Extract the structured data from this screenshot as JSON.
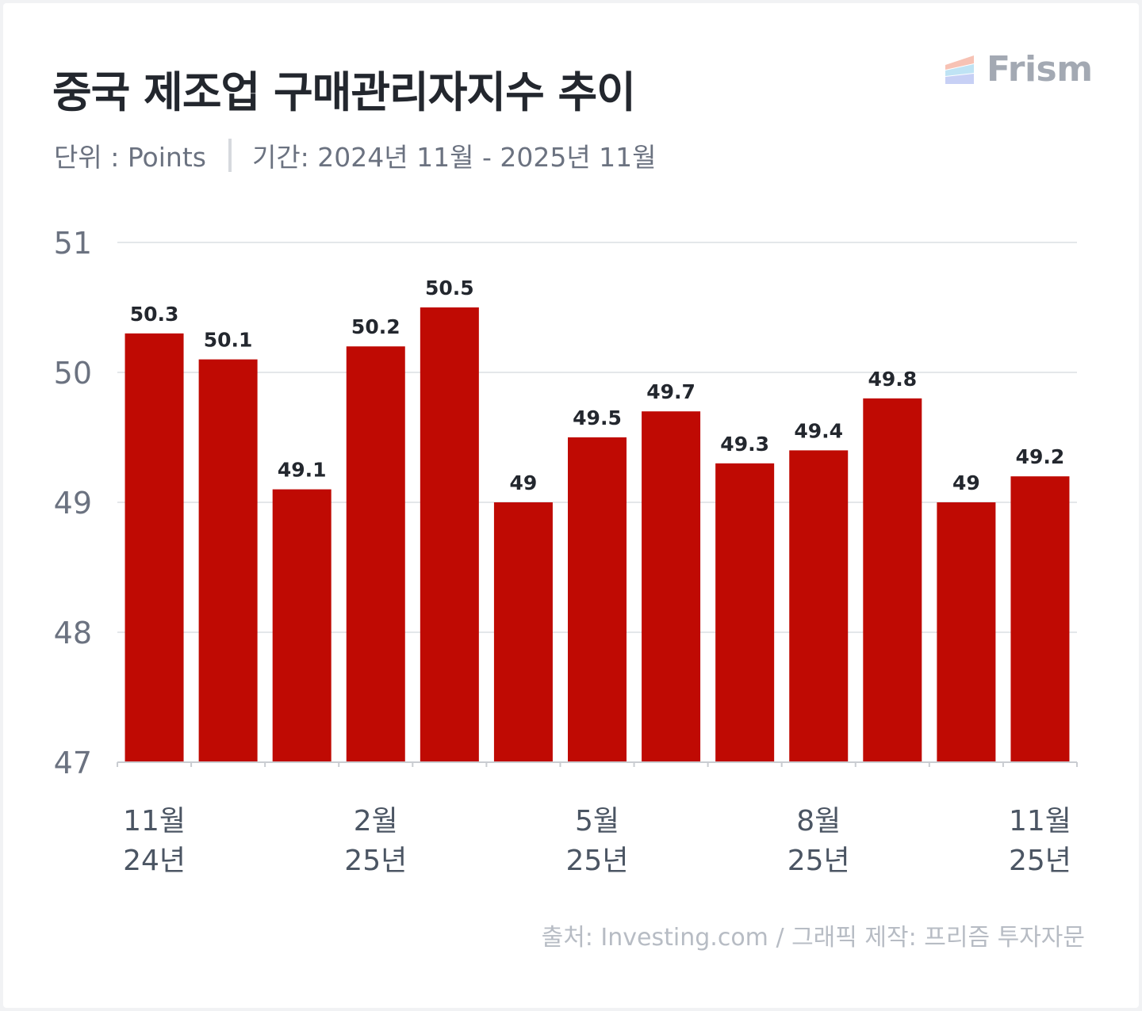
{
  "title": "중국 제조업 구매관리자지수 추이",
  "subtitle": {
    "unit": "단위 : Points",
    "period": "기간: 2024년 11월 - 2025년 11월"
  },
  "logo": {
    "text": "Frism",
    "icon": "frism-logo-icon"
  },
  "source": "출처: Investing.com / 그래픽 제작: 프리즘 투자자문",
  "colors": {
    "bar": "#bf0a03",
    "grid": "#dcdfe3",
    "axis_text": "#6b7280",
    "label_text": "#23272e"
  },
  "chart_data": {
    "type": "bar",
    "categories": [
      "2024-11",
      "2024-12",
      "2025-01",
      "2025-02",
      "2025-03",
      "2025-04",
      "2025-05",
      "2025-06",
      "2025-07",
      "2025-08",
      "2025-09",
      "2025-10",
      "2025-11"
    ],
    "values": [
      50.3,
      50.1,
      49.1,
      50.2,
      50.5,
      49.0,
      49.5,
      49.7,
      49.3,
      49.4,
      49.8,
      49.0,
      49.2
    ],
    "value_labels": [
      "50.3",
      "50.1",
      "49.1",
      "50.2",
      "50.5",
      "49",
      "49.5",
      "49.7",
      "49.3",
      "49.4",
      "49.8",
      "49",
      "49.2"
    ],
    "ylim": [
      47,
      51
    ],
    "yticks": [
      47,
      48,
      49,
      50,
      51
    ],
    "xtick_labels": [
      {
        "index": 0,
        "line1": "11월",
        "line2": "24년"
      },
      {
        "index": 3,
        "line1": "2월",
        "line2": "25년"
      },
      {
        "index": 6,
        "line1": "5월",
        "line2": "25년"
      },
      {
        "index": 9,
        "line1": "8월",
        "line2": "25년"
      },
      {
        "index": 12,
        "line1": "11월",
        "line2": "25년"
      }
    ],
    "grid": true,
    "legend": "none"
  }
}
